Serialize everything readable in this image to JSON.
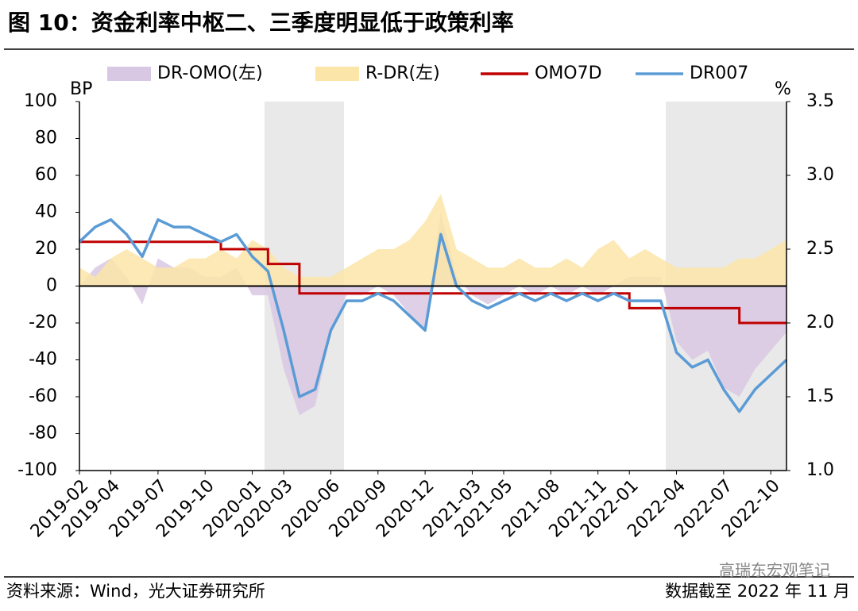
{
  "chart_data": {
    "type": "combo",
    "title": "图 10：资金利率中枢二、三季度明显低于政策利率",
    "left_axis_label": "BP",
    "right_axis_label": "%",
    "source": "资料来源：Wind，光大证券研究所",
    "note": "数据截至 2022 年 11 月",
    "watermark": "高瑞东宏观笔记",
    "categories": [
      "2019-02",
      "2019-03",
      "2019-04",
      "2019-05",
      "2019-06",
      "2019-07",
      "2019-08",
      "2019-09",
      "2019-10",
      "2019-11",
      "2019-12",
      "2020-01",
      "2020-02",
      "2020-03",
      "2020-04",
      "2020-05",
      "2020-06",
      "2020-07",
      "2020-08",
      "2020-09",
      "2020-10",
      "2020-11",
      "2020-12",
      "2021-01",
      "2021-02",
      "2021-03",
      "2021-04",
      "2021-05",
      "2021-06",
      "2021-07",
      "2021-08",
      "2021-09",
      "2021-10",
      "2021-11",
      "2021-12",
      "2022-01",
      "2022-02",
      "2022-03",
      "2022-04",
      "2022-05",
      "2022-06",
      "2022-07",
      "2022-08",
      "2022-09",
      "2022-10",
      "2022-11"
    ],
    "xticks": [
      "2019-02",
      "2019-04",
      "2019-07",
      "2019-10",
      "2020-01",
      "2020-03",
      "2020-06",
      "2020-09",
      "2020-12",
      "2021-03",
      "2021-05",
      "2021-08",
      "2021-11",
      "2022-01",
      "2022-04",
      "2022-07",
      "2022-10"
    ],
    "ylim": [
      -100,
      100
    ],
    "yticks": [
      -100,
      -80,
      -60,
      -40,
      -20,
      0,
      20,
      40,
      60,
      80,
      100
    ],
    "y2lim": [
      1.0,
      3.5
    ],
    "y2ticks": [
      {
        "value": 1.0,
        "label": "1.0"
      },
      1.5,
      {
        "value": 2.0,
        "label": "2.0"
      },
      2.5,
      {
        "value": 3.0,
        "label": "3.0"
      },
      3.5
    ],
    "series": [
      {
        "name": "DR-OMO(左)",
        "kind": "area",
        "color": "#d9c8e4",
        "values": [
          0,
          10,
          15,
          5,
          -10,
          15,
          10,
          10,
          5,
          5,
          10,
          -5,
          -5,
          -45,
          -70,
          -65,
          -25,
          -5,
          -5,
          0,
          -5,
          -15,
          -25,
          40,
          5,
          -5,
          -10,
          -5,
          0,
          -5,
          0,
          -5,
          0,
          -5,
          0,
          5,
          5,
          5,
          -30,
          -40,
          -35,
          -55,
          -60,
          -45,
          -35,
          -25
        ]
      },
      {
        "name": "R-DR(左)",
        "kind": "area",
        "color": "#fbe5a8",
        "values": [
          10,
          5,
          15,
          20,
          15,
          10,
          10,
          15,
          15,
          20,
          15,
          25,
          20,
          10,
          5,
          5,
          5,
          10,
          15,
          20,
          20,
          25,
          35,
          50,
          20,
          15,
          10,
          10,
          15,
          10,
          10,
          15,
          10,
          20,
          25,
          15,
          20,
          15,
          10,
          10,
          10,
          10,
          15,
          15,
          20,
          25
        ]
      },
      {
        "name": "OMO7D",
        "kind": "step",
        "axis": "y2",
        "color": "#c00000",
        "values": [
          2.55,
          2.55,
          2.55,
          2.55,
          2.55,
          2.55,
          2.55,
          2.55,
          2.55,
          2.5,
          2.5,
          2.5,
          2.4,
          2.4,
          2.2,
          2.2,
          2.2,
          2.2,
          2.2,
          2.2,
          2.2,
          2.2,
          2.2,
          2.2,
          2.2,
          2.2,
          2.2,
          2.2,
          2.2,
          2.2,
          2.2,
          2.2,
          2.2,
          2.2,
          2.2,
          2.1,
          2.1,
          2.1,
          2.1,
          2.1,
          2.1,
          2.1,
          2.0,
          2.0,
          2.0,
          2.0
        ]
      },
      {
        "name": "DR007",
        "kind": "line",
        "axis": "y2",
        "color": "#5b9bd5",
        "values": [
          2.55,
          2.65,
          2.7,
          2.6,
          2.45,
          2.7,
          2.65,
          2.65,
          2.6,
          2.55,
          2.6,
          2.45,
          2.35,
          1.95,
          1.5,
          1.55,
          1.95,
          2.15,
          2.15,
          2.2,
          2.15,
          2.05,
          1.95,
          2.6,
          2.25,
          2.15,
          2.1,
          2.15,
          2.2,
          2.15,
          2.2,
          2.15,
          2.2,
          2.15,
          2.2,
          2.15,
          2.15,
          2.15,
          1.8,
          1.7,
          1.75,
          1.55,
          1.4,
          1.55,
          1.65,
          1.75
        ]
      }
    ]
  }
}
